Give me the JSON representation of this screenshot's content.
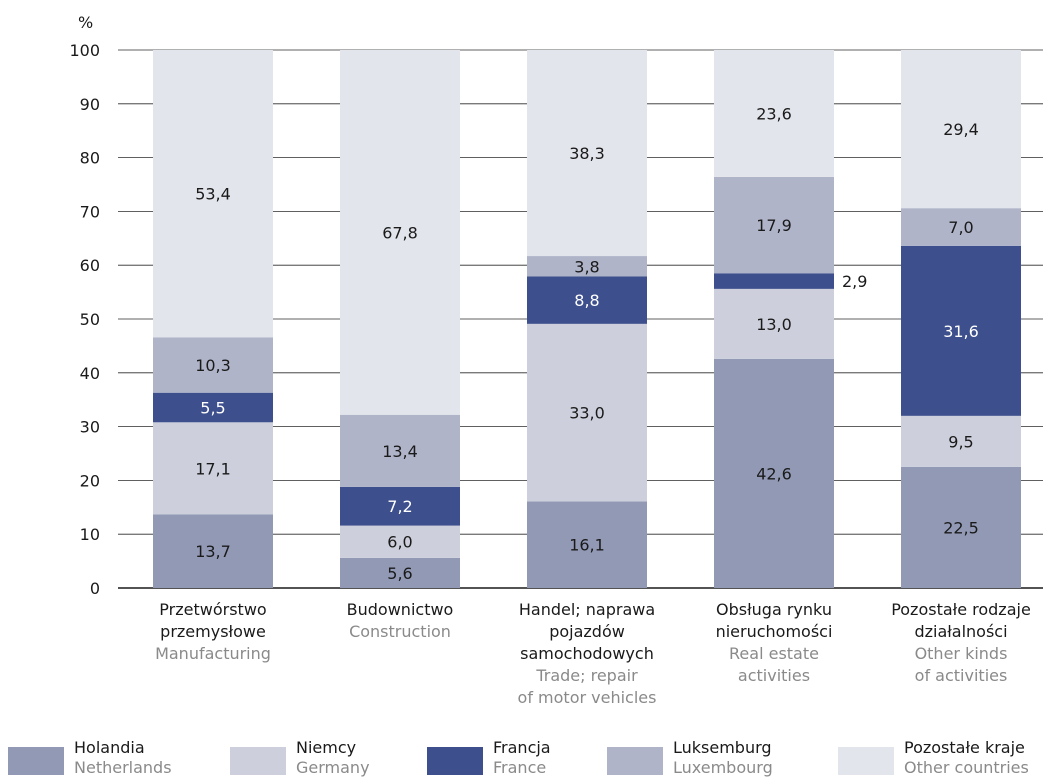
{
  "chart_data": {
    "type": "bar",
    "stacked": true,
    "unit_label": "%",
    "ylim": [
      0,
      100
    ],
    "yticks": [
      0,
      10,
      20,
      30,
      40,
      50,
      60,
      70,
      80,
      90,
      100
    ],
    "grid": true,
    "legend_position": "bottom",
    "categories": [
      {
        "pl": [
          "Przetwórstwo",
          "przemysłowe"
        ],
        "en": [
          "Manufacturing"
        ]
      },
      {
        "pl": [
          "Budownictwo"
        ],
        "en": [
          "Construction"
        ]
      },
      {
        "pl": [
          "Handel; naprawa",
          "pojazdów",
          "samochodowych"
        ],
        "en": [
          "Trade; repair",
          "of motor vehicles"
        ]
      },
      {
        "pl": [
          "Obsługa rynku",
          "nieruchomości"
        ],
        "en": [
          "Real estate",
          "activities"
        ]
      },
      {
        "pl": [
          "Pozostałe rodzaje",
          "działalności"
        ],
        "en": [
          "Other kinds",
          "of activities"
        ]
      }
    ],
    "series": [
      {
        "name_pl": "Holandia",
        "name_en": "Netherlands",
        "color": "#9199b5",
        "label_color": "#1a1a1a",
        "values": [
          13.7,
          5.6,
          16.1,
          42.6,
          22.5
        ],
        "labels": [
          "13,7",
          "5,6",
          "16,1",
          "42,6",
          "22,5"
        ]
      },
      {
        "name_pl": "Niemcy",
        "name_en": "Germany",
        "color": "#cdd0dc",
        "label_color": "#1a1a1a",
        "values": [
          17.1,
          6.0,
          33.0,
          13.0,
          9.5
        ],
        "labels": [
          "17,1",
          "6,0",
          "33,0",
          "13,0",
          "9,5"
        ]
      },
      {
        "name_pl": "Francja",
        "name_en": "France",
        "color": "#3d4f8c",
        "label_color": "#ffffff",
        "values": [
          5.5,
          7.2,
          8.8,
          2.9,
          31.6
        ],
        "labels": [
          "5,5",
          "7,2",
          "8,8",
          "2,9",
          "31,6"
        ]
      },
      {
        "name_pl": "Luksemburg",
        "name_en": "Luxembourg",
        "color": "#afb4c9",
        "label_color": "#1a1a1a",
        "values": [
          10.3,
          13.4,
          3.8,
          17.9,
          7.0
        ],
        "labels": [
          "10,3",
          "13,4",
          "3,8",
          "17,9",
          "7,0"
        ]
      },
      {
        "name_pl": "Pozostałe kraje",
        "name_en": "Other countries",
        "color": "#e3e5ec",
        "label_color": "#1a1a1a",
        "values": [
          53.4,
          67.8,
          38.3,
          23.6,
          29.4
        ],
        "labels": [
          "53,4",
          "67,8",
          "38,3",
          "23,6",
          "29,4"
        ]
      }
    ]
  }
}
